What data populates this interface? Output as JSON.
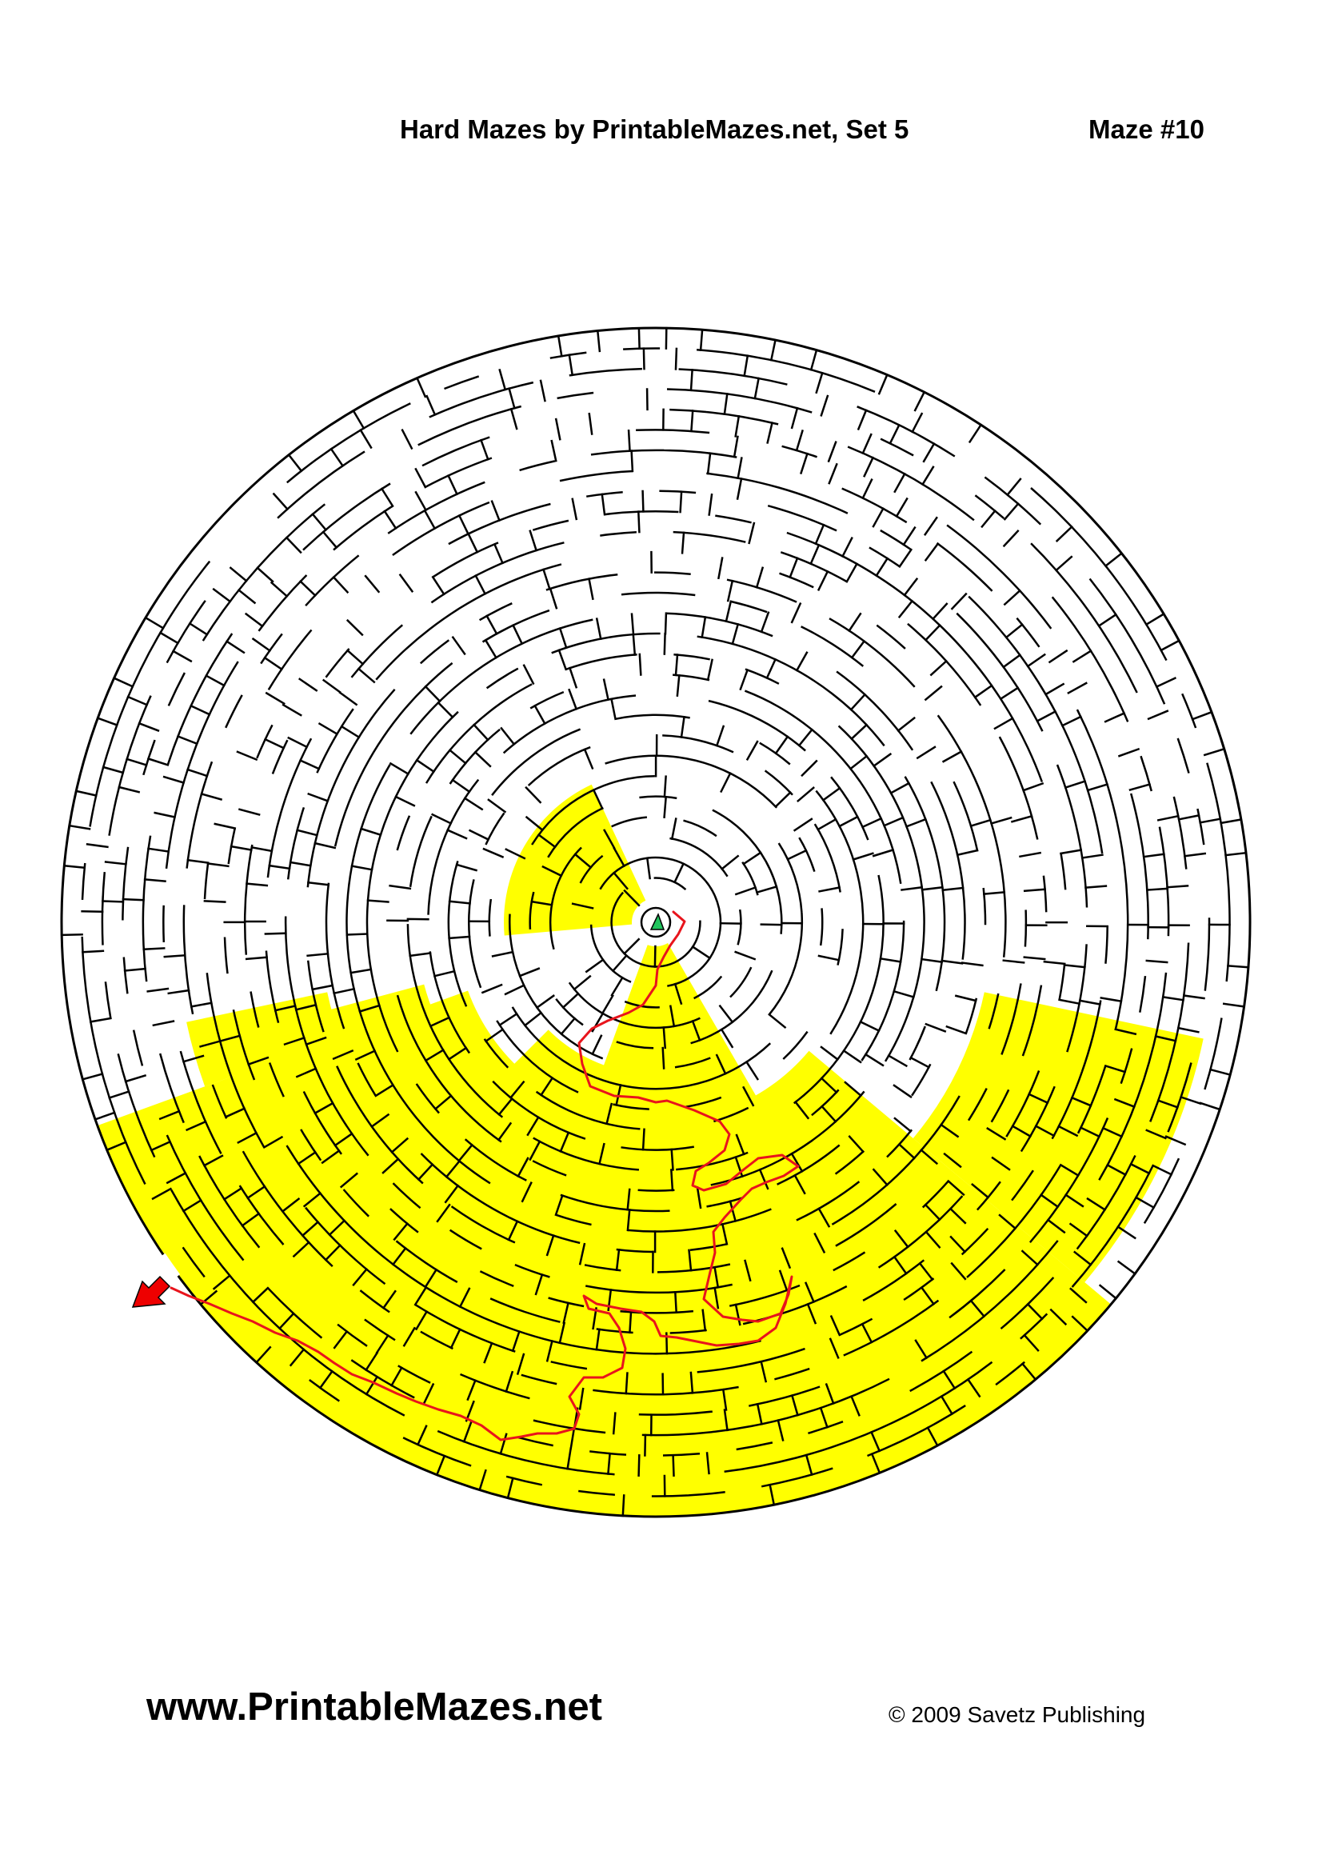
{
  "header": {
    "title": "Hard Mazes by PrintableMazes.net, Set 5",
    "maze_number": "Maze #10"
  },
  "footer": {
    "website": "www.PrintableMazes.net",
    "copyright": "© 2009 Savetz Publishing"
  },
  "maze": {
    "shape": "circular",
    "solution_shown": true,
    "colors": {
      "wall": "#000000",
      "highlight": "#ffff00",
      "solution_path": "#e8141c",
      "start_marker": "#22c55e",
      "exit_arrow": "#ee0000"
    }
  }
}
